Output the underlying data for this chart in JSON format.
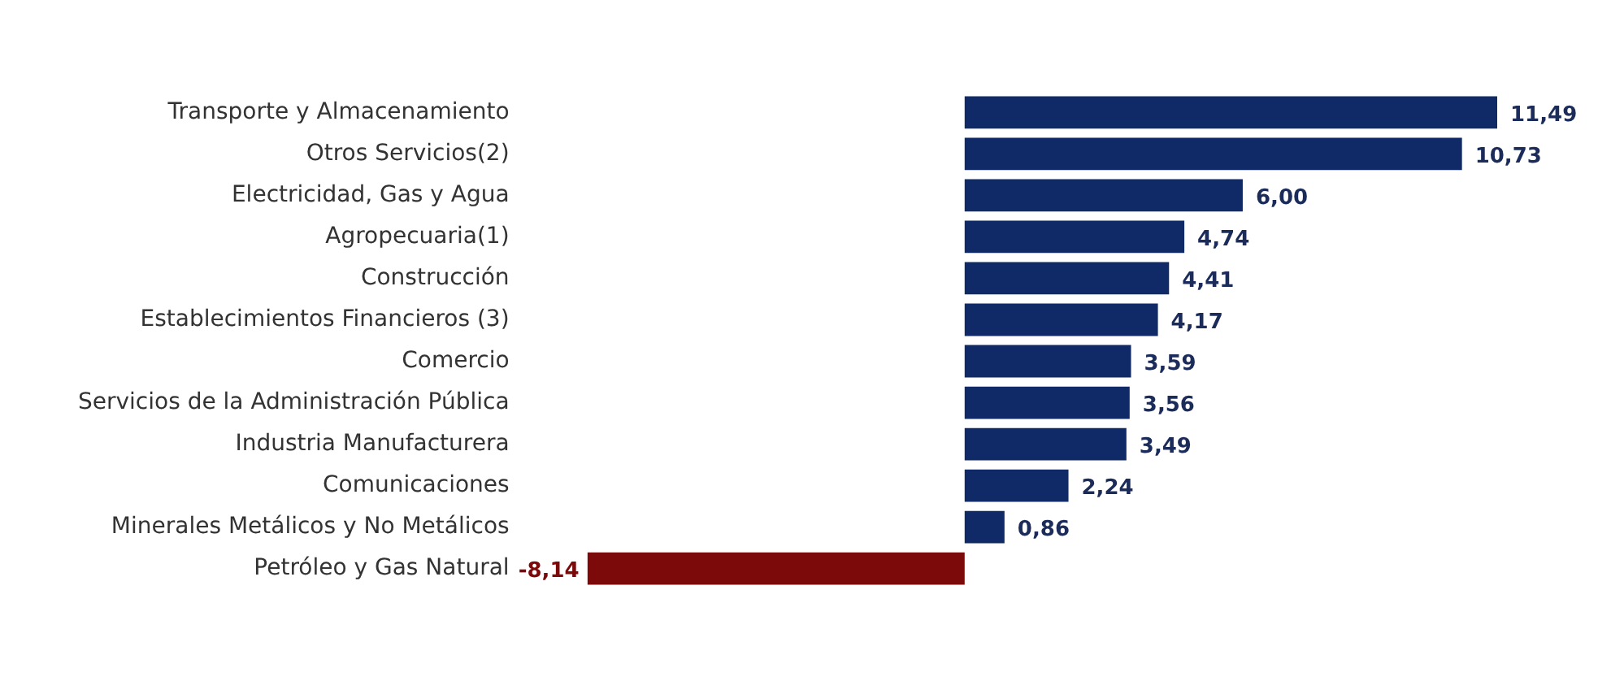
{
  "chart_data": {
    "type": "bar",
    "orientation": "horizontal",
    "categories": [
      "Transporte y Almacenamiento",
      "Otros Servicios(2)",
      "Electricidad, Gas y Agua",
      "Agropecuaria(1)",
      "Construcción",
      "Establecimientos Financieros (3)",
      "Comercio",
      "Servicios de la Administración Pública",
      "Industria Manufacturera",
      "Comunicaciones",
      "Minerales Metálicos y No Metálicos",
      "Petróleo y Gas Natural"
    ],
    "values": [
      11.49,
      10.73,
      6.0,
      4.74,
      4.41,
      4.17,
      3.59,
      3.56,
      3.49,
      2.24,
      0.86,
      -8.14
    ],
    "value_labels": [
      "11,49",
      "10,73",
      "6,00",
      "4,74",
      "4,41",
      "4,17",
      "3,59",
      "3,56",
      "3,49",
      "2,24",
      "0,86",
      "-8,14"
    ],
    "colors": [
      "#0f2a66",
      "#0f2a66",
      "#0f2a66",
      "#0f2a66",
      "#0f2a66",
      "#0f2a66",
      "#0f2a66",
      "#0f2a66",
      "#0f2a66",
      "#0f2a66",
      "#0f2a66",
      "#7d0a0a"
    ],
    "legend": false
  }
}
